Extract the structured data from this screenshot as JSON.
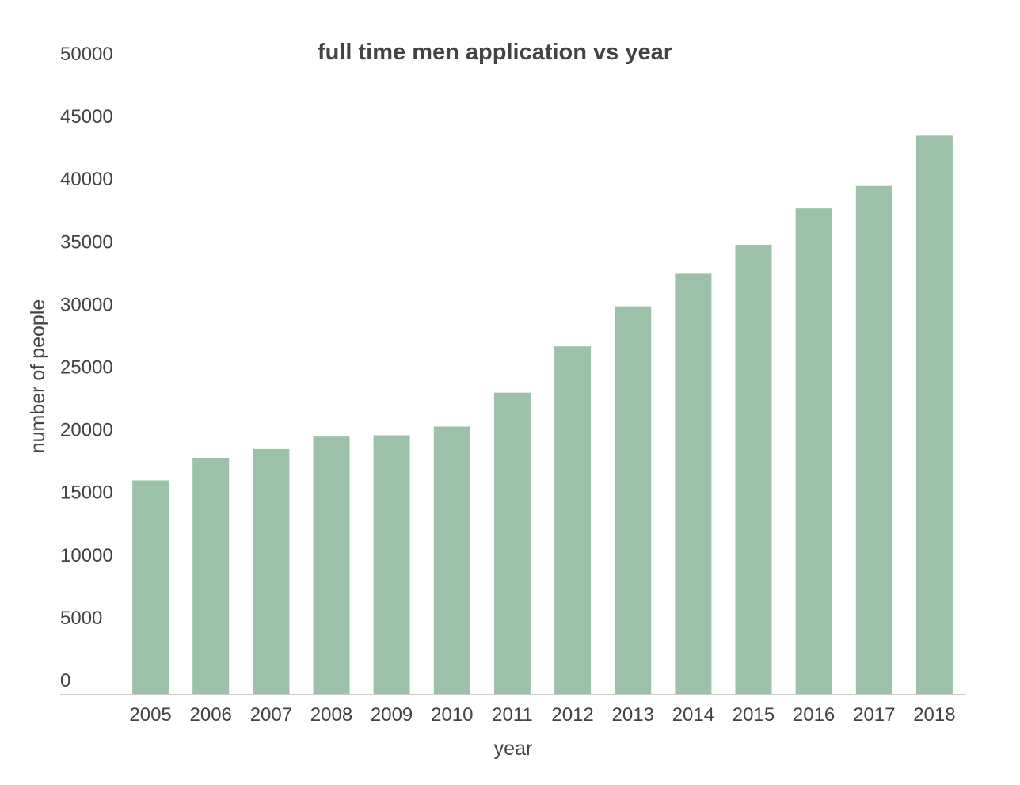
{
  "chart_data": {
    "type": "bar",
    "title": "full time men application vs year",
    "xlabel": "year",
    "ylabel": "number of people",
    "categories": [
      "2005",
      "2006",
      "2007",
      "2008",
      "2009",
      "2010",
      "2011",
      "2012",
      "2013",
      "2014",
      "2015",
      "2016",
      "2017",
      "2018"
    ],
    "values": [
      17100,
      18900,
      19600,
      20600,
      20700,
      21400,
      24100,
      27800,
      31000,
      33600,
      35900,
      38800,
      40600,
      44600
    ],
    "ylim": [
      0,
      50000
    ],
    "yticks": [
      "0",
      "5000",
      "10000",
      "15000",
      "20000",
      "25000",
      "30000",
      "35000",
      "40000",
      "45000",
      "50000"
    ],
    "grid": false,
    "legend": "none",
    "colors": {
      "bar": "#9bc2a8",
      "text": "#434343",
      "axis": "#cccccc"
    }
  }
}
